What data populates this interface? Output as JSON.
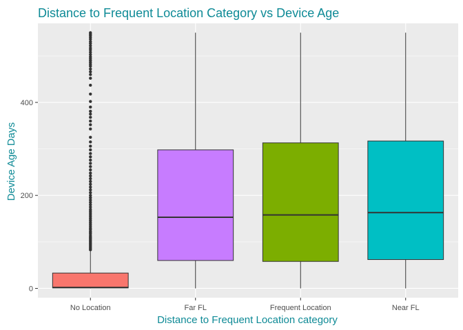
{
  "chart_data": {
    "type": "boxplot",
    "title": "Distance to Frequent Location Category vs Device Age",
    "xlabel": "Distance to Frequent Location category",
    "ylabel": "Device Age Days",
    "ylim": [
      -20,
      570
    ],
    "yticks": [
      0,
      200,
      400
    ],
    "categories": [
      "No Location",
      "Far FL",
      "Frequent Location",
      "Near FL"
    ],
    "colors": [
      "#F8766D",
      "#C77CFF",
      "#7CAE00",
      "#00BFC4"
    ],
    "text_color": "#0E8A96",
    "panel_background": "#EBEBEB",
    "grid": true,
    "legend": "none",
    "boxes": [
      {
        "category": "No Location",
        "min": 0,
        "q1": 1,
        "median": 2,
        "q3": 33,
        "max": 80,
        "outliers": [
          83,
          86,
          89,
          92,
          95,
          98,
          101,
          104,
          107,
          110,
          113,
          117,
          120,
          123,
          127,
          130,
          134,
          138,
          142,
          146,
          150,
          154,
          158,
          162,
          166,
          170,
          175,
          180,
          185,
          190,
          195,
          200,
          206,
          212,
          218,
          224,
          230,
          236,
          242,
          248,
          255,
          262,
          269,
          276,
          283,
          290,
          298,
          306,
          315,
          325,
          343,
          352,
          360,
          368,
          375,
          381,
          390,
          402,
          418,
          437,
          452,
          460,
          466,
          472,
          478,
          482,
          486,
          490,
          494,
          498,
          503,
          508,
          513,
          517,
          522,
          527,
          531,
          536,
          540,
          544,
          547,
          550
        ]
      },
      {
        "category": "Far FL",
        "min": 0,
        "q1": 60,
        "median": 153,
        "q3": 298,
        "max": 550,
        "outliers": []
      },
      {
        "category": "Frequent Location",
        "min": 0,
        "q1": 58,
        "median": 158,
        "q3": 313,
        "max": 550,
        "outliers": []
      },
      {
        "category": "Near FL",
        "min": 0,
        "q1": 62,
        "median": 163,
        "q3": 317,
        "max": 550,
        "outliers": []
      }
    ]
  }
}
